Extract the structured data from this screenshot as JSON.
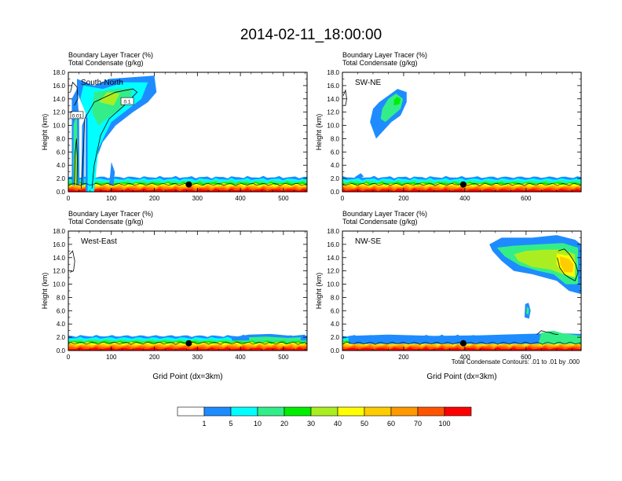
{
  "figure": {
    "title": "2014-02-11_18:00:00",
    "footnote": "Total Condensate Contours: .01 to .01 by .000"
  },
  "colors": {
    "scale": [
      "#ffffff",
      "#1e8cff",
      "#00ffff",
      "#33ee88",
      "#00ee00",
      "#aaee22",
      "#ffff00",
      "#ffcc00",
      "#ff9900",
      "#ff5500",
      "#ff0000"
    ],
    "contour": "#000000"
  },
  "colorbar": {
    "labels": [
      "1",
      "5",
      "10",
      "20",
      "30",
      "40",
      "50",
      "60",
      "70",
      "100"
    ]
  },
  "chart_data": [
    {
      "type": "heatmap",
      "panel_label": "South-North",
      "title_line1": "Boundary Layer Tracer   (%)",
      "title_line2": "Total Condensate   (g/kg)",
      "ylabel": "Height (km)",
      "xlabel": "",
      "xlim": [
        0,
        555
      ],
      "ylim": [
        0,
        18
      ],
      "xticks": [
        0,
        100,
        200,
        300,
        400,
        500
      ],
      "yticks": [
        0,
        2,
        4,
        6,
        8,
        10,
        12,
        14,
        16,
        18
      ],
      "ytick_labels": [
        "0.0",
        "2.0",
        "4.0",
        "6.0",
        "8.0",
        "10.0",
        "12.0",
        "14.0",
        "16.0",
        "18.0"
      ],
      "contour_labels": [
        "0.1",
        "0.01"
      ],
      "terrain_marker": {
        "x": 280,
        "height": 1.1
      }
    },
    {
      "type": "heatmap",
      "panel_label": "SW-NE",
      "title_line1": "Boundary Layer Tracer   (%)",
      "title_line2": "Total Condensate   (g/kg)",
      "ylabel": "Height (km)",
      "xlabel": "",
      "xlim": [
        0,
        780
      ],
      "ylim": [
        0,
        18
      ],
      "xticks": [
        0,
        200,
        400,
        600
      ],
      "yticks": [
        0,
        2,
        4,
        6,
        8,
        10,
        12,
        14,
        16,
        18
      ],
      "ytick_labels": [
        "0.0",
        "2.0",
        "4.0",
        "6.0",
        "8.0",
        "10.0",
        "12.0",
        "14.0",
        "16.0",
        "18.0"
      ],
      "terrain_marker": {
        "x": 395,
        "height": 1.1
      }
    },
    {
      "type": "heatmap",
      "panel_label": "West-East",
      "title_line1": "Boundary Layer Tracer   (%)",
      "title_line2": "Total Condensate   (g/kg)",
      "ylabel": "Height (km)",
      "xlabel": "Grid Point (dx=3km)",
      "xlim": [
        0,
        555
      ],
      "ylim": [
        0,
        18
      ],
      "xticks": [
        0,
        100,
        200,
        300,
        400,
        500
      ],
      "yticks": [
        0,
        2,
        4,
        6,
        8,
        10,
        12,
        14,
        16,
        18
      ],
      "ytick_labels": [
        "0.0",
        "2.0",
        "4.0",
        "6.0",
        "8.0",
        "10.0",
        "12.0",
        "14.0",
        "16.0",
        "18.0"
      ],
      "terrain_marker": {
        "x": 280,
        "height": 1.1
      }
    },
    {
      "type": "heatmap",
      "panel_label": "NW-SE",
      "title_line1": "Boundary Layer Tracer   (%)",
      "title_line2": "Total Condensate   (g/kg)",
      "ylabel": "Height (km)",
      "xlabel": "Grid Point (dx=3km)",
      "xlim": [
        0,
        780
      ],
      "ylim": [
        0,
        18
      ],
      "xticks": [
        0,
        200,
        400,
        600
      ],
      "yticks": [
        0,
        2,
        4,
        6,
        8,
        10,
        12,
        14,
        16,
        18
      ],
      "ytick_labels": [
        "0.0",
        "2.0",
        "4.0",
        "6.0",
        "8.0",
        "10.0",
        "12.0",
        "14.0",
        "16.0",
        "18.0"
      ],
      "terrain_marker": {
        "x": 395,
        "height": 1.1
      }
    }
  ]
}
